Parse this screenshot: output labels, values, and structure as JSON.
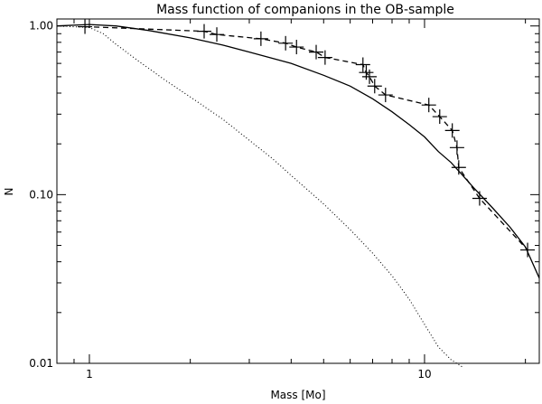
{
  "chart_data": {
    "type": "line",
    "title": "Mass function of companions in the OB-sample",
    "xlabel": "Mass [Mo]",
    "ylabel": "N",
    "x_scale": "log",
    "y_scale": "log",
    "xlim": [
      0.8,
      22
    ],
    "ylim": [
      0.01,
      1.1
    ],
    "x_ticks": [
      {
        "value": 1,
        "label": "1"
      },
      {
        "value": 10,
        "label": "10"
      }
    ],
    "y_ticks": [
      {
        "value": 0.01,
        "label": "0.01"
      },
      {
        "value": 0.1,
        "label": "0.10"
      },
      {
        "value": 1.0,
        "label": "1.00"
      }
    ],
    "grid": false,
    "series": [
      {
        "style": "dashed-with-plus-markers",
        "color": "#000000",
        "x": [
          0.97,
          2.2,
          2.4,
          3.25,
          3.85,
          4.15,
          4.75,
          5.05,
          6.55,
          6.7,
          6.85,
          7.1,
          7.65,
          10.3,
          11.1,
          12.1,
          12.5,
          12.65,
          14.6,
          20.3
        ],
        "y": [
          0.99,
          0.93,
          0.89,
          0.84,
          0.79,
          0.75,
          0.7,
          0.65,
          0.59,
          0.53,
          0.5,
          0.44,
          0.39,
          0.34,
          0.29,
          0.24,
          0.19,
          0.145,
          0.095,
          0.047
        ]
      },
      {
        "style": "solid",
        "color": "#000000",
        "x": [
          0.8,
          1.0,
          1.2,
          1.5,
          2.0,
          2.5,
          3.0,
          4.0,
          5.0,
          6.0,
          7.0,
          8.0,
          9.0,
          10.0,
          11.0,
          12.0,
          13.0,
          14.0,
          16.0,
          18.0,
          20.0,
          22.0
        ],
        "y": [
          1.0,
          1.02,
          1.0,
          0.94,
          0.85,
          0.77,
          0.7,
          0.6,
          0.51,
          0.44,
          0.37,
          0.31,
          0.26,
          0.22,
          0.18,
          0.155,
          0.13,
          0.11,
          0.083,
          0.064,
          0.049,
          0.032
        ]
      },
      {
        "style": "dotted",
        "color": "#000000",
        "x": [
          0.8,
          1.0,
          1.1,
          1.2,
          1.4,
          1.7,
          2.0,
          2.5,
          3.0,
          3.5,
          4.0,
          5.0,
          6.0,
          7.0,
          8.0,
          9.0,
          10.0,
          11.0,
          12.0,
          13.0
        ],
        "y": [
          1.0,
          0.98,
          0.9,
          0.78,
          0.62,
          0.47,
          0.38,
          0.28,
          0.21,
          0.165,
          0.13,
          0.088,
          0.062,
          0.045,
          0.033,
          0.024,
          0.017,
          0.0125,
          0.0105,
          0.0095
        ]
      }
    ]
  }
}
